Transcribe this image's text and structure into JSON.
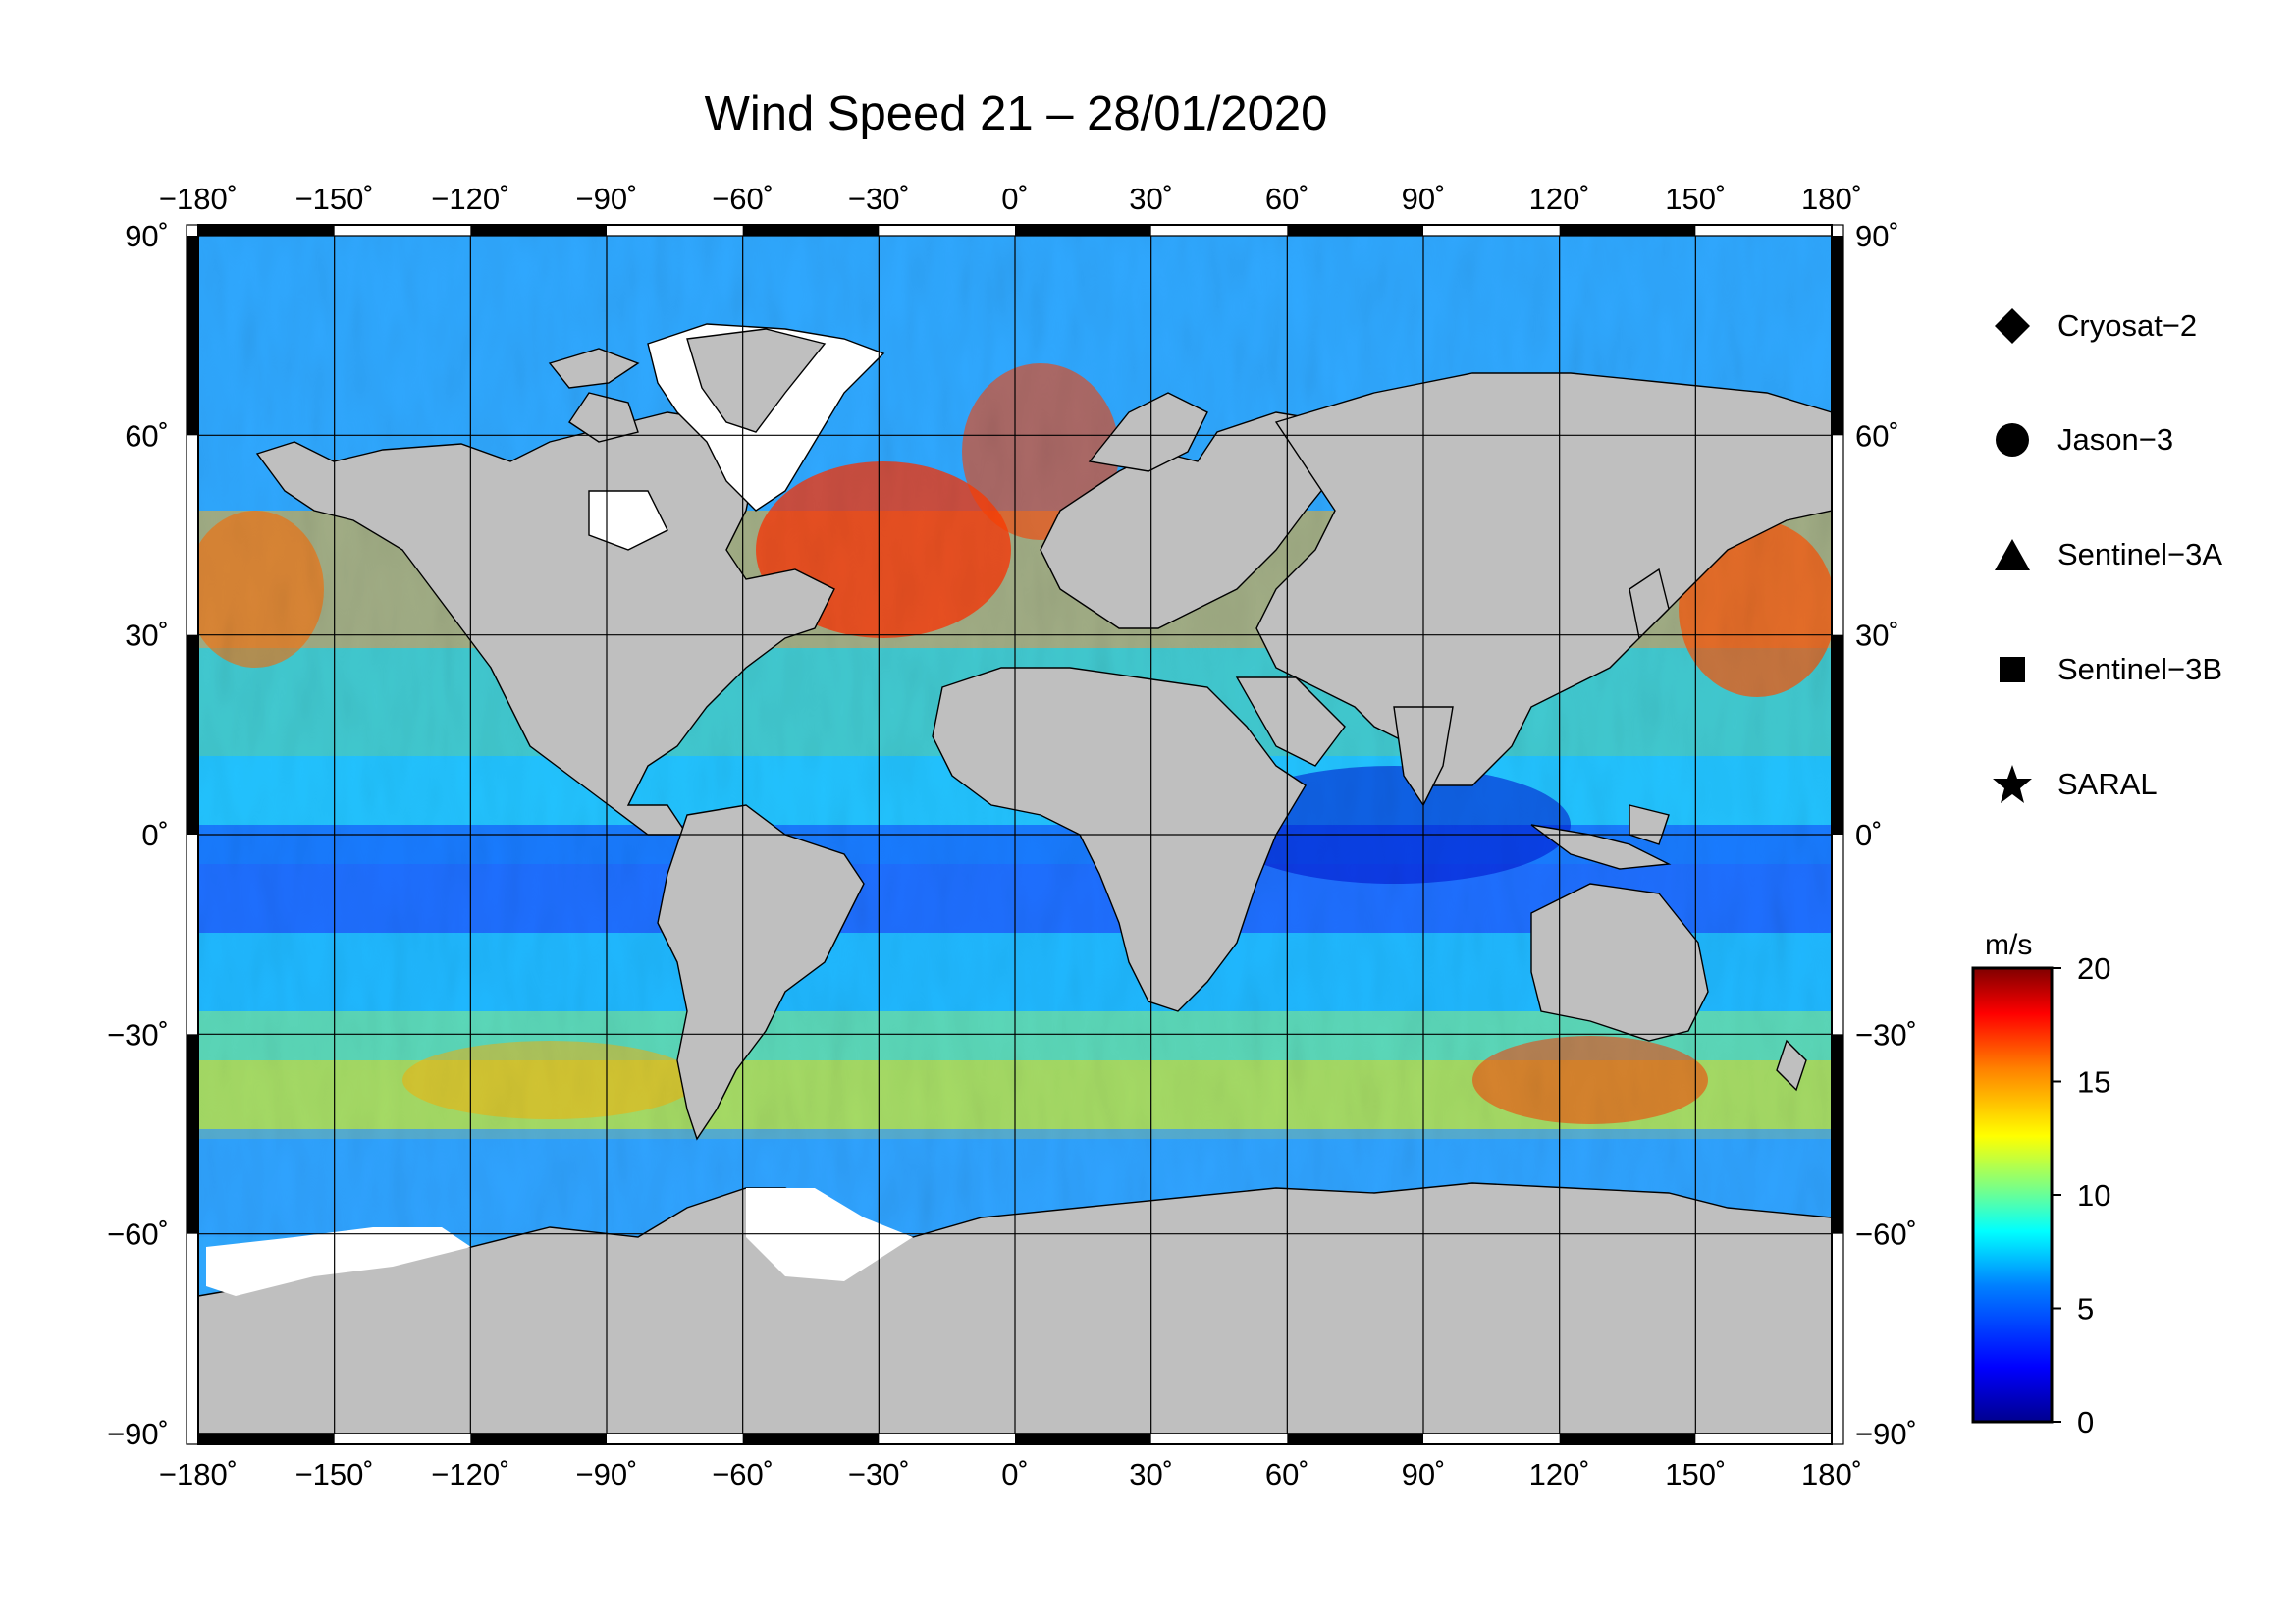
{
  "title": "Wind Speed 21 – 28/01/2020",
  "map": {
    "lon_ticks": [
      "−180˚",
      "−150˚",
      "−120˚",
      "−90˚",
      "−60˚",
      "−30˚",
      "0˚",
      "30˚",
      "60˚",
      "90˚",
      "120˚",
      "150˚",
      "180˚"
    ],
    "lat_ticks": [
      "90˚",
      "60˚",
      "30˚",
      "0˚",
      "−30˚",
      "−60˚",
      "−90˚"
    ],
    "lon_values": [
      -180,
      -150,
      -120,
      -90,
      -60,
      -30,
      0,
      30,
      60,
      90,
      120,
      150,
      180
    ],
    "lat_values": [
      90,
      60,
      30,
      0,
      -30,
      -60,
      -90
    ],
    "projection": "plate carree",
    "land_color": "#bfbfbf",
    "sea_ice_color": "#ffffff",
    "grid": true
  },
  "legend": {
    "items": [
      {
        "label": "Cryosat−2",
        "icon": "diamond-icon"
      },
      {
        "label": "Jason−3",
        "icon": "circle-icon"
      },
      {
        "label": "Sentinel−3A",
        "icon": "triangle-icon"
      },
      {
        "label": "Sentinel−3B",
        "icon": "square-icon"
      },
      {
        "label": "SARAL",
        "icon": "star-icon"
      }
    ]
  },
  "colorbar": {
    "unit": "m/s",
    "min": 0,
    "max": 20,
    "ticks": [
      "20",
      "15",
      "10",
      "5",
      "0"
    ],
    "tick_values": [
      20,
      15,
      10,
      5,
      0
    ],
    "colormap": [
      "#00008f",
      "#0000ff",
      "#0080ff",
      "#00ffff",
      "#80ff80",
      "#ffff00",
      "#ff8000",
      "#ff0000",
      "#800000"
    ]
  }
}
